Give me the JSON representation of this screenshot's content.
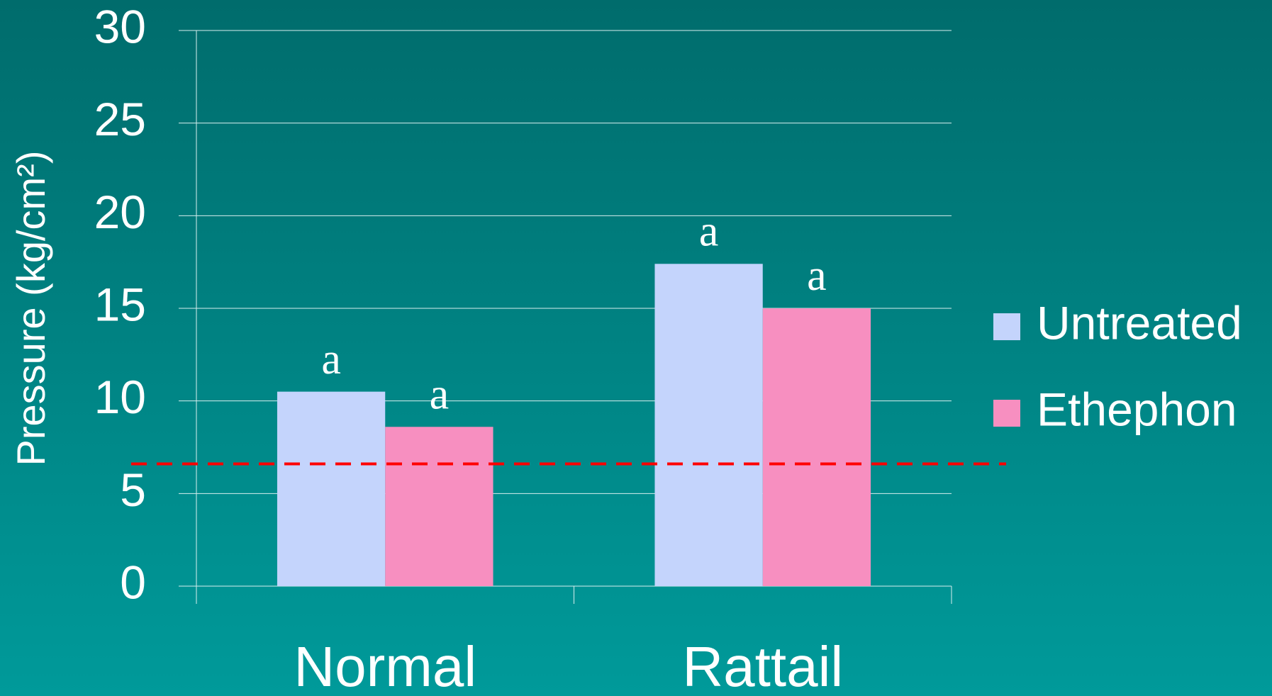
{
  "chart_data": {
    "type": "bar",
    "y_label": "Pressure (kg/cm²)",
    "categories": [
      "Normal",
      "Rattail"
    ],
    "series": [
      {
        "name": "Untreated",
        "color": "#c4d4fc",
        "values": [
          10.5,
          17.4
        ],
        "letters": [
          "a",
          "a"
        ]
      },
      {
        "name": "Ethephon",
        "color": "#f78fc0",
        "values": [
          8.6,
          15.0
        ],
        "letters": [
          "a",
          "a"
        ]
      }
    ],
    "ylim": [
      0,
      30
    ],
    "yticks": [
      0,
      5,
      10,
      15,
      20,
      25,
      30
    ],
    "grid": true,
    "legend": "right",
    "reference_line": {
      "value": 6.6,
      "color": "#ff0000"
    }
  }
}
